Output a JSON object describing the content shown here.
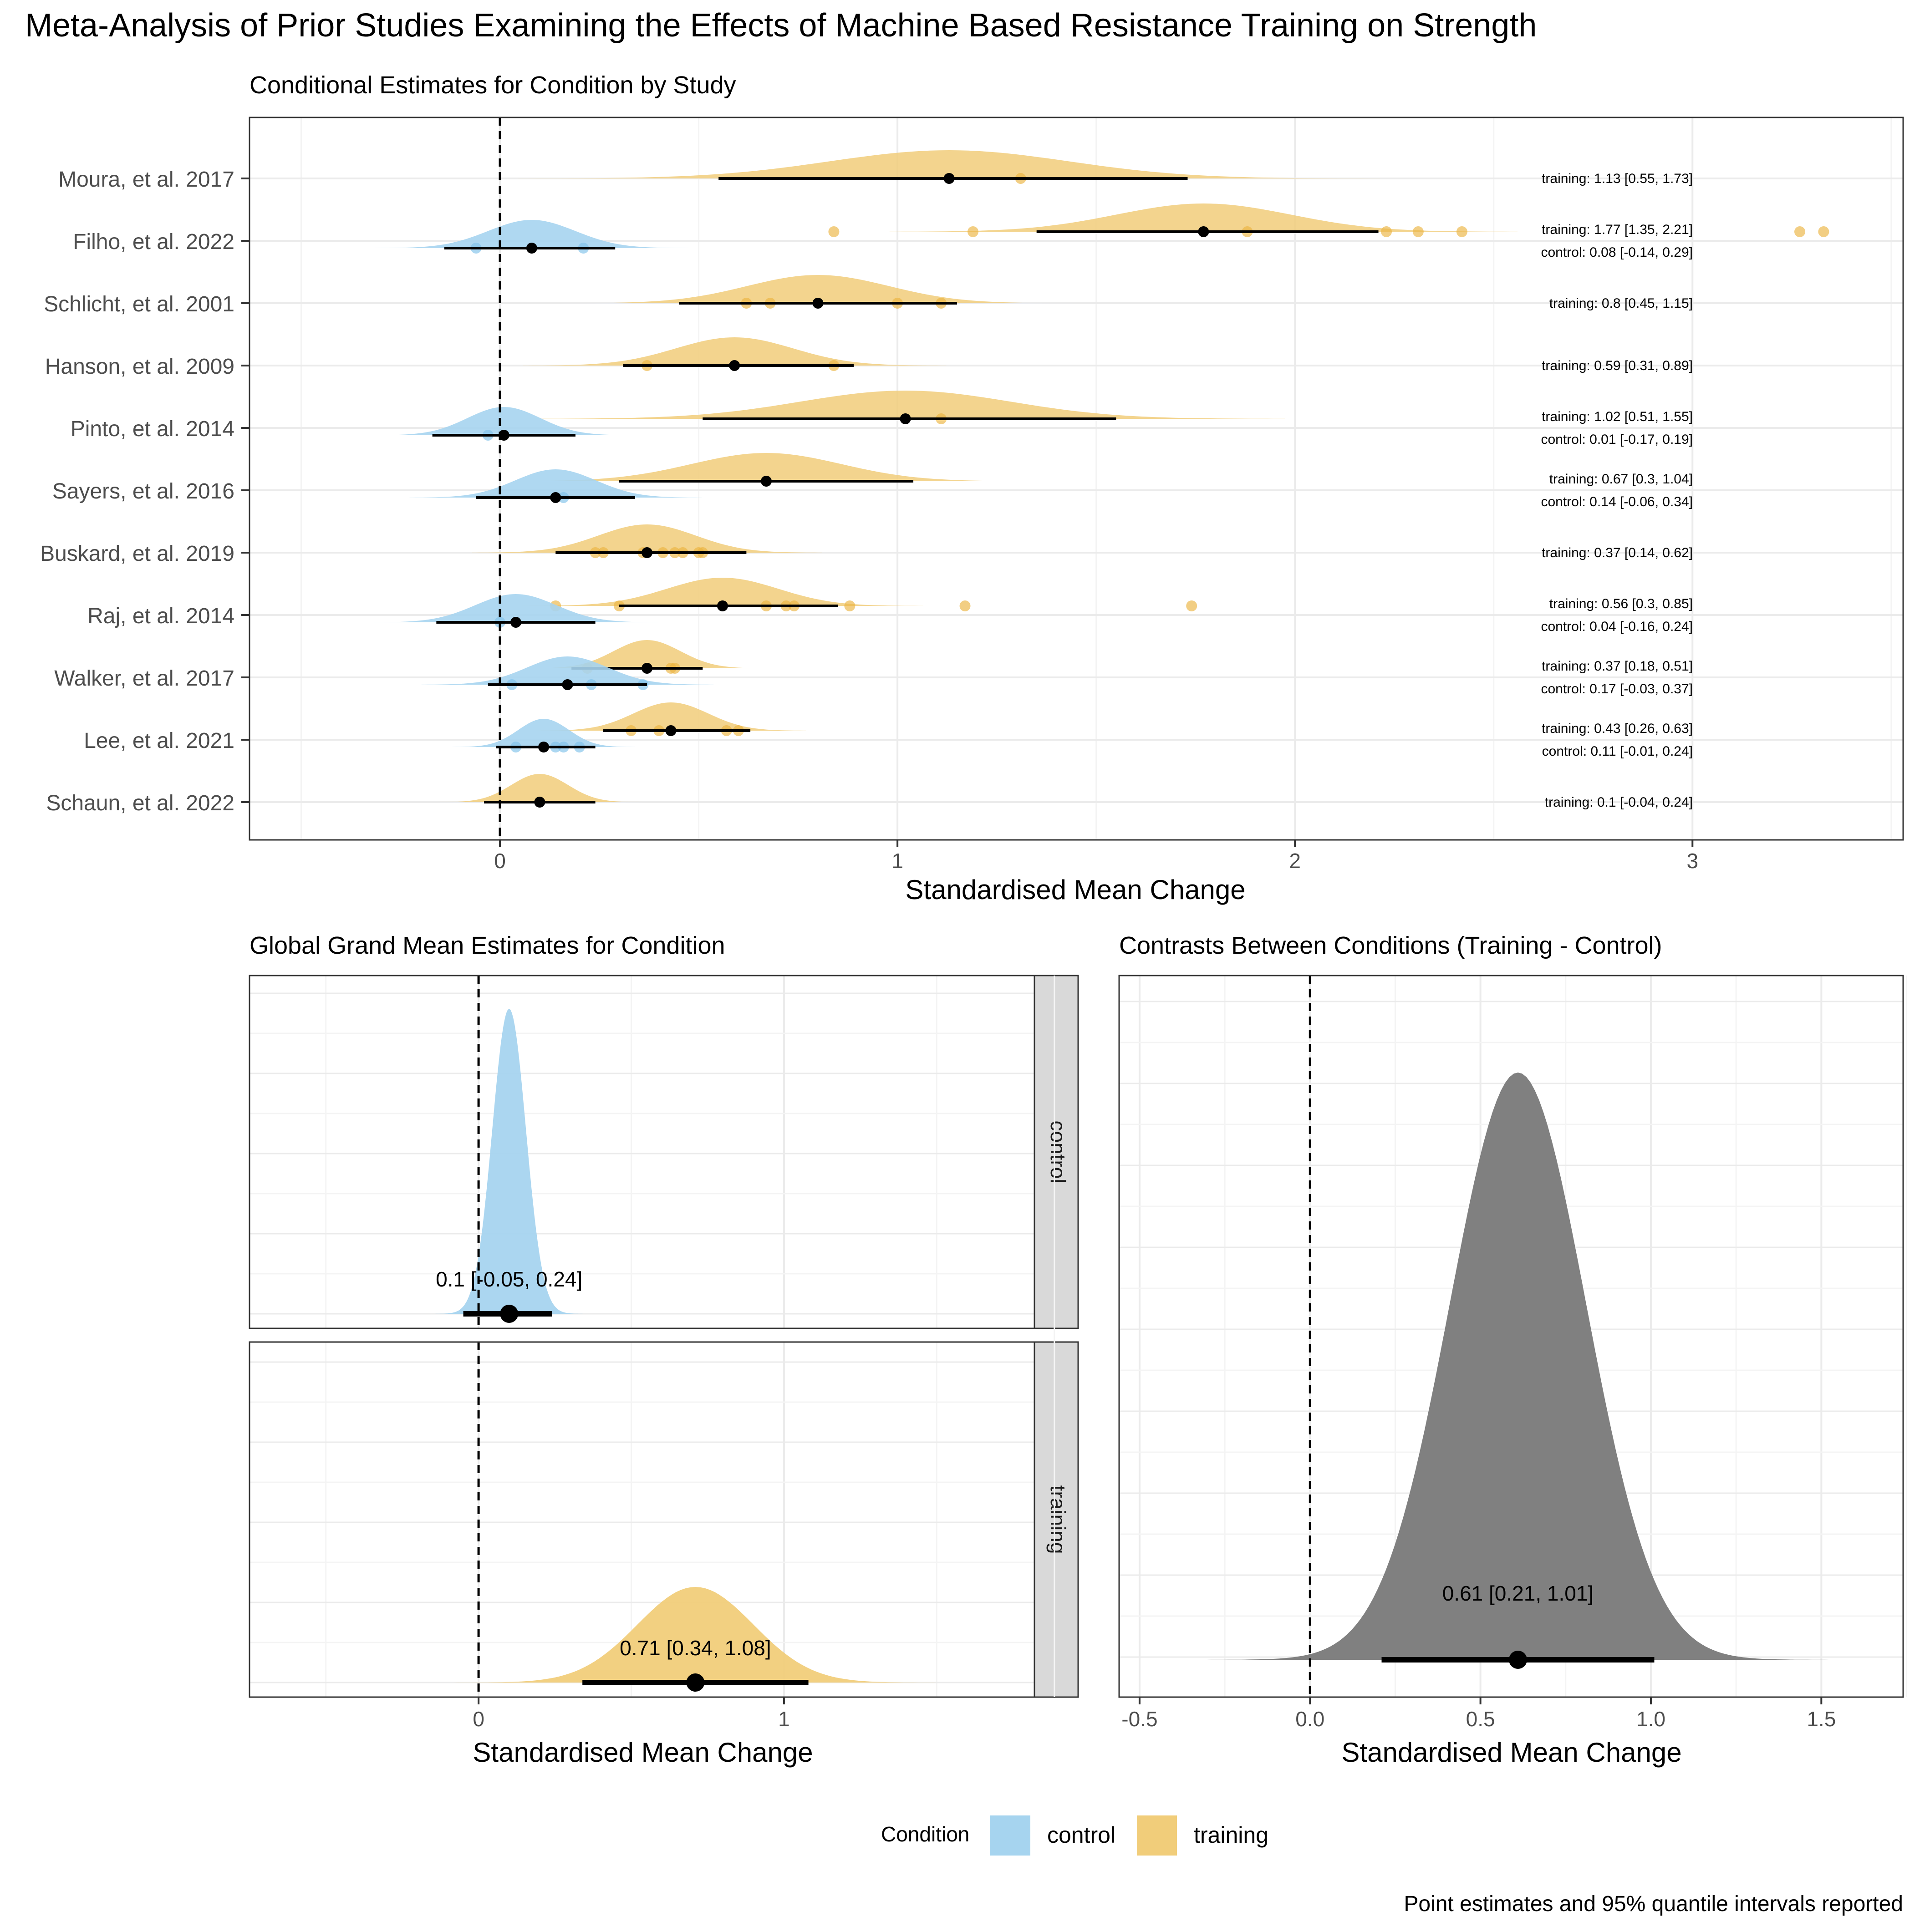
{
  "title": "Meta-Analysis of Prior Studies Examining the Effects of Machine Based Resistance Training on Strength",
  "caption": "Point estimates and 95% quantile intervals reported",
  "colors": {
    "control": "#a6d4ef",
    "training": "#f1cd7a",
    "training_point": "#ebb441",
    "control_point": "#80c1ea",
    "contrast": "#808080",
    "strip": "#d9d9d9",
    "grid_major": "#ebebeb",
    "grid_minor": "#f4f4f4"
  },
  "legend": {
    "title": "Condition",
    "items": [
      {
        "key": "control",
        "label": "control"
      },
      {
        "key": "training",
        "label": "training"
      }
    ]
  },
  "chart_data": [
    {
      "id": "study_panel",
      "type": "forest-density",
      "title": "Conditional Estimates for Condition by Study",
      "xlabel": "Standardised Mean Change",
      "xlim": [
        -0.63,
        3.53
      ],
      "xticks": [
        0,
        1,
        2,
        3
      ],
      "xtick_labels": [
        "0",
        "1",
        "2",
        "3"
      ],
      "reference_line": 0,
      "studies": [
        {
          "name": "Moura, et al. 2017",
          "training": {
            "est": 1.13,
            "lo": 0.55,
            "hi": 1.73,
            "label": "training: 1.13 [0.55, 1.73]",
            "points": [
              1.31
            ]
          }
        },
        {
          "name": "Filho, et al. 2022",
          "training": {
            "est": 1.77,
            "lo": 1.35,
            "hi": 2.21,
            "label": "training: 1.77 [1.35, 2.21]",
            "points": [
              0.84,
              1.19,
              1.88,
              2.23,
              2.31,
              2.42,
              3.27,
              3.33
            ]
          },
          "control": {
            "est": 0.08,
            "lo": -0.14,
            "hi": 0.29,
            "label": "control: 0.08 [-0.14, 0.29]",
            "points": [
              -0.06,
              0.21
            ]
          }
        },
        {
          "name": "Schlicht, et al. 2001",
          "training": {
            "est": 0.8,
            "lo": 0.45,
            "hi": 1.15,
            "label": "training: 0.8 [0.45, 1.15]",
            "points": [
              0.62,
              0.68,
              1.0,
              1.11
            ]
          }
        },
        {
          "name": "Hanson, et al. 2009",
          "training": {
            "est": 0.59,
            "lo": 0.31,
            "hi": 0.89,
            "label": "training: 0.59 [0.31, 0.89]",
            "points": [
              0.37,
              0.84
            ]
          }
        },
        {
          "name": "Pinto, et al. 2014",
          "training": {
            "est": 1.02,
            "lo": 0.51,
            "hi": 1.55,
            "label": "training: 1.02 [0.51, 1.55]",
            "points": [
              1.11
            ]
          },
          "control": {
            "est": 0.01,
            "lo": -0.17,
            "hi": 0.19,
            "label": "control: 0.01 [-0.17, 0.19]",
            "points": [
              -0.03
            ]
          }
        },
        {
          "name": "Sayers, et al. 2016",
          "training": {
            "est": 0.67,
            "lo": 0.3,
            "hi": 1.04,
            "label": "training: 0.67 [0.3, 1.04]",
            "points": []
          },
          "control": {
            "est": 0.14,
            "lo": -0.06,
            "hi": 0.34,
            "label": "control: 0.14 [-0.06, 0.34]",
            "points": [
              0.16
            ]
          }
        },
        {
          "name": "Buskard, et al. 2019",
          "training": {
            "est": 0.37,
            "lo": 0.14,
            "hi": 0.62,
            "label": "training: 0.37 [0.14, 0.62]",
            "points": [
              0.24,
              0.26,
              0.36,
              0.41,
              0.44,
              0.46,
              0.5,
              0.51
            ]
          }
        },
        {
          "name": "Raj, et al. 2014",
          "training": {
            "est": 0.56,
            "lo": 0.3,
            "hi": 0.85,
            "label": "training: 0.56 [0.3, 0.85]",
            "points": [
              0.14,
              0.3,
              0.67,
              0.72,
              0.74,
              0.88,
              1.17,
              1.74
            ]
          },
          "control": {
            "est": 0.04,
            "lo": -0.16,
            "hi": 0.24,
            "label": "control: 0.04 [-0.16, 0.24]",
            "points": [
              0.0
            ]
          }
        },
        {
          "name": "Walker, et al. 2017",
          "training": {
            "est": 0.37,
            "lo": 0.18,
            "hi": 0.51,
            "label": "training: 0.37 [0.18, 0.51]",
            "points": [
              0.22,
              0.43,
              0.44
            ]
          },
          "control": {
            "est": 0.17,
            "lo": -0.03,
            "hi": 0.37,
            "label": "control: 0.17 [-0.03, 0.37]",
            "points": [
              0.03,
              0.23,
              0.36
            ]
          }
        },
        {
          "name": "Lee, et al. 2021",
          "training": {
            "est": 0.43,
            "lo": 0.26,
            "hi": 0.63,
            "label": "training: 0.43 [0.26, 0.63]",
            "points": [
              0.33,
              0.4,
              0.57,
              0.6
            ]
          },
          "control": {
            "est": 0.11,
            "lo": -0.01,
            "hi": 0.24,
            "label": "control: 0.11 [-0.01, 0.24]",
            "points": [
              0.04,
              0.14,
              0.16,
              0.2
            ]
          }
        },
        {
          "name": "Schaun, et al. 2022",
          "training": {
            "est": 0.1,
            "lo": -0.04,
            "hi": 0.24,
            "label": "training: 0.1 [-0.04, 0.24]",
            "points": []
          }
        }
      ]
    },
    {
      "id": "grand_mean_panel",
      "type": "density-faceted",
      "title": "Global Grand Mean Estimates for Condition",
      "xlabel": "Standardised Mean Change",
      "xlim": [
        -0.75,
        1.82
      ],
      "xticks": [
        0,
        1
      ],
      "xtick_labels": [
        "0",
        "1"
      ],
      "reference_line": 0,
      "facets": [
        {
          "strip": "control",
          "condition": "control",
          "est": 0.1,
          "lo": -0.05,
          "hi": 0.24,
          "sd": 0.055,
          "label": "0.1 [-0.05, 0.24]"
        },
        {
          "strip": "training",
          "condition": "training",
          "est": 0.71,
          "lo": 0.34,
          "hi": 1.08,
          "sd": 0.19,
          "label": "0.71 [0.34, 1.08]"
        }
      ]
    },
    {
      "id": "contrast_panel",
      "type": "density",
      "title": "Contrasts Between Conditions (Training - Control)",
      "xlabel": "Standardised Mean Change",
      "xlim": [
        -0.56,
        1.74
      ],
      "xticks": [
        -0.5,
        0.0,
        0.5,
        1.0,
        1.5
      ],
      "xtick_labels": [
        "-0.5",
        "0.0",
        "0.5",
        "1.0",
        "1.5"
      ],
      "reference_line": 0,
      "est": 0.61,
      "lo": 0.21,
      "hi": 1.01,
      "sd": 0.2,
      "label": "0.61 [0.21, 1.01]"
    }
  ]
}
